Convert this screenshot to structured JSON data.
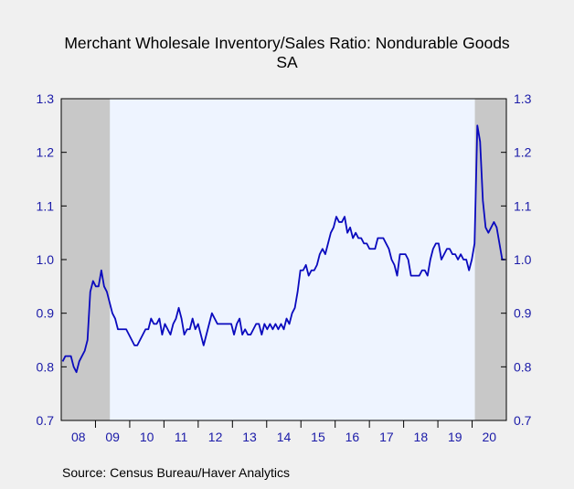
{
  "chart_data": {
    "type": "line",
    "title_lines": [
      "Merchant Wholesale Inventory/Sales Ratio: Nondurable Goods",
      "SA"
    ],
    "source": "Source:   Census Bureau/Haver Analytics",
    "x_tick_labels": [
      "08",
      "09",
      "10",
      "11",
      "12",
      "13",
      "14",
      "15",
      "16",
      "17",
      "18",
      "19",
      "20"
    ],
    "x_range_years": [
      2008.0,
      2021.0
    ],
    "ylim": [
      0.7,
      1.3
    ],
    "y_ticks": [
      0.7,
      0.8,
      0.9,
      1.0,
      1.1,
      1.2,
      1.3
    ],
    "y_tick_labels": [
      "0.7",
      "0.8",
      "0.9",
      "1.0",
      "1.1",
      "1.2",
      "1.3"
    ],
    "recessions": [
      [
        2008.0,
        2009.42
      ],
      [
        2020.08,
        2021.0
      ]
    ],
    "colors": {
      "background": "#f0f0f0",
      "plot_background": "#eef4ff",
      "recession_shade": "#c8c8c8",
      "series_line": "#0a0abe",
      "axis_labels": "#1a1aa8",
      "title_text": "#000000"
    },
    "series": [
      {
        "values": [
          0.81,
          0.82,
          0.82,
          0.82,
          0.8,
          0.79,
          0.81,
          0.82,
          0.83,
          0.85,
          0.94,
          0.96,
          0.95,
          0.95,
          0.98,
          0.95,
          0.94,
          0.92,
          0.9,
          0.89,
          0.87,
          0.87,
          0.87,
          0.87,
          0.86,
          0.85,
          0.84,
          0.84,
          0.85,
          0.86,
          0.87,
          0.87,
          0.89,
          0.88,
          0.88,
          0.89,
          0.86,
          0.88,
          0.87,
          0.86,
          0.88,
          0.89,
          0.91,
          0.89,
          0.86,
          0.87,
          0.87,
          0.89,
          0.87,
          0.88,
          0.86,
          0.84,
          0.86,
          0.88,
          0.9,
          0.89,
          0.88,
          0.88,
          0.88,
          0.88,
          0.88,
          0.88,
          0.86,
          0.88,
          0.89,
          0.86,
          0.87,
          0.86,
          0.86,
          0.87,
          0.88,
          0.88,
          0.86,
          0.88,
          0.87,
          0.88,
          0.87,
          0.88,
          0.87,
          0.88,
          0.87,
          0.89,
          0.88,
          0.9,
          0.91,
          0.94,
          0.98,
          0.98,
          0.99,
          0.97,
          0.98,
          0.98,
          0.99,
          1.01,
          1.02,
          1.01,
          1.03,
          1.05,
          1.06,
          1.08,
          1.07,
          1.07,
          1.08,
          1.05,
          1.06,
          1.04,
          1.05,
          1.04,
          1.04,
          1.03,
          1.03,
          1.02,
          1.02,
          1.02,
          1.04,
          1.04,
          1.04,
          1.03,
          1.02,
          1.0,
          0.99,
          0.97,
          1.01,
          1.01,
          1.01,
          1.0,
          0.97,
          0.97,
          0.97,
          0.97,
          0.98,
          0.98,
          0.97,
          1.0,
          1.02,
          1.03,
          1.03,
          1.0,
          1.01,
          1.02,
          1.02,
          1.01,
          1.01,
          1.0,
          1.01,
          1.0,
          1.0,
          0.98,
          1.0,
          1.03,
          1.25,
          1.22,
          1.11,
          1.06,
          1.05,
          1.06,
          1.07,
          1.06,
          1.03,
          1.0,
          1.0
        ]
      }
    ]
  }
}
